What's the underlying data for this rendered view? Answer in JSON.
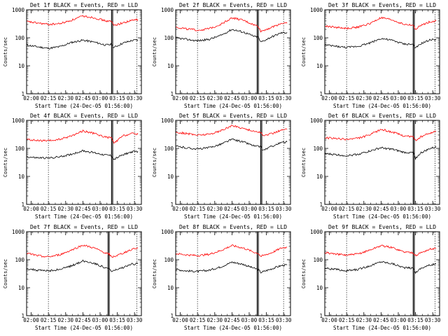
{
  "figure": {
    "background": "#ffffff",
    "colors": {
      "events": "#000000",
      "lld": "#ff0000",
      "axes": "#000000"
    }
  },
  "chart_data": [
    {
      "type": "line",
      "title": "Det 1f BLACK = Events, RED = LLD",
      "xlabel": "Start Time (24-Dec-05 01:56:00)",
      "ylabel": "Counts/sec",
      "xticks": [
        "02:00",
        "02:15",
        "02:30",
        "02:45",
        "03:00",
        "03:15",
        "03:30"
      ],
      "x_range": [
        "01:56",
        "03:36"
      ],
      "yscale": "log",
      "ylim": [
        1,
        1000
      ],
      "yticks": [
        "1",
        "10",
        "100",
        "1000"
      ],
      "markers": [
        "02:15",
        "03:10",
        "03:11",
        "03:32"
      ],
      "series": [
        {
          "name": "Events",
          "color": "#000000",
          "x": [
            "01:56",
            "02:05",
            "02:15",
            "02:25",
            "02:35",
            "02:45",
            "02:55",
            "03:05",
            "03:10",
            "03:12",
            "03:20",
            "03:28",
            "03:33"
          ],
          "y": [
            55,
            48,
            42,
            48,
            68,
            82,
            70,
            55,
            58,
            45,
            65,
            80,
            85
          ]
        },
        {
          "name": "LLD",
          "color": "#ff0000",
          "x": [
            "01:56",
            "02:05",
            "02:15",
            "02:25",
            "02:35",
            "02:45",
            "02:55",
            "03:05",
            "03:10",
            "03:12",
            "03:20",
            "03:28",
            "03:33"
          ],
          "y": [
            380,
            340,
            300,
            320,
            420,
            600,
            520,
            400,
            380,
            280,
            340,
            420,
            450
          ]
        }
      ]
    },
    {
      "type": "line",
      "title": "Det 2f BLACK = Events, RED = LLD",
      "xlabel": "Start Time (24-Dec-05 01:56:00)",
      "ylabel": "Counts/sec",
      "xticks": [
        "02:00",
        "02:15",
        "02:30",
        "02:45",
        "03:00",
        "03:15",
        "03:30"
      ],
      "x_range": [
        "01:56",
        "03:36"
      ],
      "yscale": "log",
      "ylim": [
        1,
        1000
      ],
      "yticks": [
        "1",
        "10",
        "100",
        "1000"
      ],
      "markers": [
        "02:15",
        "03:07",
        "03:08",
        "03:30"
      ],
      "series": [
        {
          "name": "Events",
          "color": "#000000",
          "x": [
            "01:56",
            "02:05",
            "02:15",
            "02:25",
            "02:35",
            "02:45",
            "02:55",
            "03:05",
            "03:08",
            "03:10",
            "03:20",
            "03:28",
            "03:33"
          ],
          "y": [
            100,
            88,
            78,
            88,
            120,
            200,
            160,
            110,
            105,
            70,
            110,
            150,
            155
          ]
        },
        {
          "name": "LLD",
          "color": "#ff0000",
          "x": [
            "01:56",
            "02:05",
            "02:15",
            "02:25",
            "02:35",
            "02:45",
            "02:55",
            "03:05",
            "03:08",
            "03:10",
            "03:20",
            "03:28",
            "03:33"
          ],
          "y": [
            240,
            210,
            185,
            210,
            300,
            520,
            420,
            280,
            260,
            170,
            240,
            330,
            330
          ]
        }
      ]
    },
    {
      "type": "line",
      "title": "Det 3f BLACK = Events, RED = LLD",
      "xlabel": "Start Time (24-Dec-05 01:56:00)",
      "ylabel": "Counts/sec",
      "xticks": [
        "02:00",
        "02:15",
        "02:30",
        "02:45",
        "03:00",
        "03:15",
        "03:30"
      ],
      "x_range": [
        "01:56",
        "03:36"
      ],
      "yscale": "log",
      "ylim": [
        1,
        1000
      ],
      "yticks": [
        "1",
        "10",
        "100",
        "1000"
      ],
      "markers": [
        "02:15",
        "03:13",
        "03:14",
        "03:32"
      ],
      "series": [
        {
          "name": "Events",
          "color": "#000000",
          "x": [
            "01:56",
            "02:05",
            "02:15",
            "02:25",
            "02:35",
            "02:45",
            "02:55",
            "03:05",
            "03:13",
            "03:15",
            "03:20",
            "03:28",
            "03:33"
          ],
          "y": [
            55,
            50,
            45,
            50,
            65,
            95,
            80,
            60,
            58,
            42,
            62,
            85,
            90
          ]
        },
        {
          "name": "LLD",
          "color": "#ff0000",
          "x": [
            "01:56",
            "02:05",
            "02:15",
            "02:25",
            "02:35",
            "02:45",
            "02:55",
            "03:05",
            "03:13",
            "03:15",
            "03:20",
            "03:28",
            "03:33"
          ],
          "y": [
            260,
            240,
            215,
            240,
            320,
            520,
            430,
            300,
            280,
            200,
            280,
            380,
            400
          ]
        }
      ]
    },
    {
      "type": "line",
      "title": "Det 4f BLACK = Events, RED = LLD",
      "xlabel": "Start Time (24-Dec-05 01:56:00)",
      "ylabel": "Counts/sec",
      "xticks": [
        "02:00",
        "02:15",
        "02:30",
        "02:45",
        "03:00",
        "03:15",
        "03:30"
      ],
      "x_range": [
        "01:56",
        "03:36"
      ],
      "yscale": "log",
      "ylim": [
        1,
        1000
      ],
      "yticks": [
        "1",
        "10",
        "100",
        "1000"
      ],
      "markers": [
        "02:15",
        "03:10",
        "03:11",
        "03:30"
      ],
      "series": [
        {
          "name": "Events",
          "color": "#000000",
          "x": [
            "01:56",
            "02:05",
            "02:15",
            "02:25",
            "02:35",
            "02:45",
            "02:55",
            "03:05",
            "03:10",
            "03:12",
            "03:20",
            "03:28",
            "03:33"
          ],
          "y": [
            50,
            46,
            45,
            50,
            62,
            82,
            70,
            58,
            55,
            40,
            60,
            75,
            78
          ]
        },
        {
          "name": "LLD",
          "color": "#ff0000",
          "x": [
            "01:56",
            "02:05",
            "02:15",
            "02:25",
            "02:35",
            "02:45",
            "02:55",
            "03:05",
            "03:10",
            "03:12",
            "03:20",
            "03:28",
            "03:33"
          ],
          "y": [
            210,
            190,
            185,
            210,
            280,
            420,
            340,
            250,
            240,
            150,
            280,
            340,
            320
          ]
        }
      ]
    },
    {
      "type": "line",
      "title": "Det 5f BLACK = Events, RED = LLD",
      "xlabel": "Start Time (24-Dec-05 01:56:00)",
      "ylabel": "Counts/sec",
      "xticks": [
        "02:00",
        "02:15",
        "02:30",
        "02:45",
        "03:00",
        "03:15",
        "03:30"
      ],
      "x_range": [
        "01:56",
        "03:36"
      ],
      "yscale": "log",
      "ylim": [
        1,
        1000
      ],
      "yticks": [
        "1",
        "10",
        "100",
        "1000"
      ],
      "markers": [
        "02:15",
        "03:10",
        "03:11",
        "03:30"
      ],
      "series": [
        {
          "name": "Events",
          "color": "#000000",
          "x": [
            "01:56",
            "02:05",
            "02:15",
            "02:25",
            "02:35",
            "02:45",
            "02:55",
            "03:05",
            "03:10",
            "03:12",
            "03:20",
            "03:28",
            "03:33"
          ],
          "y": [
            120,
            105,
            95,
            105,
            140,
            210,
            170,
            120,
            115,
            85,
            120,
            160,
            170
          ]
        },
        {
          "name": "LLD",
          "color": "#ff0000",
          "x": [
            "01:56",
            "02:05",
            "02:15",
            "02:25",
            "02:35",
            "02:45",
            "02:55",
            "03:05",
            "03:10",
            "03:12",
            "03:20",
            "03:28",
            "03:33"
          ],
          "y": [
            380,
            340,
            300,
            320,
            420,
            650,
            520,
            400,
            380,
            280,
            340,
            450,
            480
          ]
        }
      ]
    },
    {
      "type": "line",
      "title": "Det 6f BLACK = Events, RED = LLD",
      "xlabel": "Start Time (24-Dec-05 01:56:00)",
      "ylabel": "Counts/sec",
      "xticks": [
        "02:00",
        "02:15",
        "02:30",
        "02:45",
        "03:00",
        "03:15",
        "03:30"
      ],
      "x_range": [
        "01:56",
        "03:36"
      ],
      "yscale": "log",
      "ylim": [
        1,
        1000
      ],
      "yticks": [
        "1",
        "10",
        "100",
        "1000"
      ],
      "markers": [
        "02:15",
        "03:13",
        "03:14",
        "03:32"
      ],
      "series": [
        {
          "name": "Events",
          "color": "#000000",
          "x": [
            "01:56",
            "02:05",
            "02:15",
            "02:25",
            "02:35",
            "02:45",
            "02:55",
            "03:05",
            "03:13",
            "03:15",
            "03:20",
            "03:28",
            "03:33"
          ],
          "y": [
            65,
            60,
            55,
            62,
            80,
            105,
            92,
            72,
            70,
            45,
            70,
            100,
            110
          ]
        },
        {
          "name": "LLD",
          "color": "#ff0000",
          "x": [
            "01:56",
            "02:05",
            "02:15",
            "02:25",
            "02:35",
            "02:45",
            "02:55",
            "03:05",
            "03:13",
            "03:15",
            "03:20",
            "03:28",
            "03:33"
          ],
          "y": [
            240,
            225,
            210,
            230,
            300,
            480,
            380,
            280,
            260,
            190,
            260,
            360,
            400
          ]
        }
      ]
    },
    {
      "type": "line",
      "title": "Det 7f BLACK = Events, RED = LLD",
      "xlabel": "Start Time (24-Dec-05 01:56:00)",
      "ylabel": "Counts/sec",
      "xticks": [
        "02:00",
        "02:15",
        "02:30",
        "02:45",
        "03:00",
        "03:15",
        "03:30"
      ],
      "x_range": [
        "01:56",
        "03:36"
      ],
      "yscale": "log",
      "ylim": [
        1,
        1000
      ],
      "yticks": [
        "1",
        "10",
        "100",
        "1000"
      ],
      "markers": [
        "02:15",
        "03:07",
        "03:08",
        "03:32"
      ],
      "series": [
        {
          "name": "Events",
          "color": "#000000",
          "x": [
            "01:56",
            "02:05",
            "02:15",
            "02:25",
            "02:35",
            "02:45",
            "02:55",
            "03:05",
            "03:08",
            "03:10",
            "03:20",
            "03:28",
            "03:33"
          ],
          "y": [
            48,
            42,
            40,
            45,
            60,
            90,
            75,
            50,
            48,
            38,
            52,
            70,
            72
          ]
        },
        {
          "name": "LLD",
          "color": "#ff0000",
          "x": [
            "01:56",
            "02:05",
            "02:15",
            "02:25",
            "02:35",
            "02:45",
            "02:55",
            "03:05",
            "03:08",
            "03:10",
            "03:20",
            "03:28",
            "03:33"
          ],
          "y": [
            170,
            140,
            125,
            150,
            220,
            330,
            260,
            170,
            160,
            120,
            170,
            240,
            260
          ]
        }
      ]
    },
    {
      "type": "line",
      "title": "Det 8f BLACK = Events, RED = LLD",
      "xlabel": "Start Time (24-Dec-05 01:56:00)",
      "ylabel": "Counts/sec",
      "xticks": [
        "02:00",
        "02:15",
        "02:30",
        "02:45",
        "03:00",
        "03:15",
        "03:30"
      ],
      "x_range": [
        "01:56",
        "03:36"
      ],
      "yscale": "log",
      "ylim": [
        1,
        1000
      ],
      "yticks": [
        "1",
        "10",
        "100",
        "1000"
      ],
      "markers": [
        "02:15",
        "03:07",
        "03:08",
        "03:30"
      ],
      "series": [
        {
          "name": "Events",
          "color": "#000000",
          "x": [
            "01:56",
            "02:05",
            "02:15",
            "02:25",
            "02:35",
            "02:45",
            "02:55",
            "03:05",
            "03:08",
            "03:10",
            "03:20",
            "03:28",
            "03:33"
          ],
          "y": [
            45,
            40,
            38,
            42,
            55,
            82,
            68,
            48,
            45,
            35,
            48,
            62,
            65
          ]
        },
        {
          "name": "LLD",
          "color": "#ff0000",
          "x": [
            "01:56",
            "02:05",
            "02:15",
            "02:25",
            "02:35",
            "02:45",
            "02:55",
            "03:05",
            "03:08",
            "03:10",
            "03:20",
            "03:28",
            "03:33"
          ],
          "y": [
            165,
            150,
            140,
            155,
            210,
            320,
            260,
            180,
            170,
            130,
            180,
            260,
            280
          ]
        }
      ]
    },
    {
      "type": "line",
      "title": "Det 9f BLACK = Events, RED = LLD",
      "xlabel": "Start Time (24-Dec-05 01:56:00)",
      "ylabel": "Counts/sec",
      "xticks": [
        "02:00",
        "02:15",
        "02:30",
        "02:45",
        "03:00",
        "03:15",
        "03:30"
      ],
      "x_range": [
        "01:56",
        "03:36"
      ],
      "yscale": "log",
      "ylim": [
        1,
        1000
      ],
      "yticks": [
        "1",
        "10",
        "100",
        "1000"
      ],
      "markers": [
        "02:15",
        "03:13",
        "03:14",
        "03:32"
      ],
      "series": [
        {
          "name": "Events",
          "color": "#000000",
          "x": [
            "01:56",
            "02:05",
            "02:15",
            "02:25",
            "02:35",
            "02:45",
            "02:55",
            "03:05",
            "03:13",
            "03:15",
            "03:20",
            "03:28",
            "03:33"
          ],
          "y": [
            50,
            45,
            40,
            45,
            60,
            85,
            72,
            52,
            50,
            35,
            50,
            65,
            70
          ]
        },
        {
          "name": "LLD",
          "color": "#ff0000",
          "x": [
            "01:56",
            "02:05",
            "02:15",
            "02:25",
            "02:35",
            "02:45",
            "02:55",
            "03:05",
            "03:13",
            "03:15",
            "03:20",
            "03:28",
            "03:33"
          ],
          "y": [
            180,
            160,
            145,
            160,
            220,
            320,
            270,
            190,
            180,
            140,
            180,
            240,
            250
          ]
        }
      ]
    }
  ]
}
